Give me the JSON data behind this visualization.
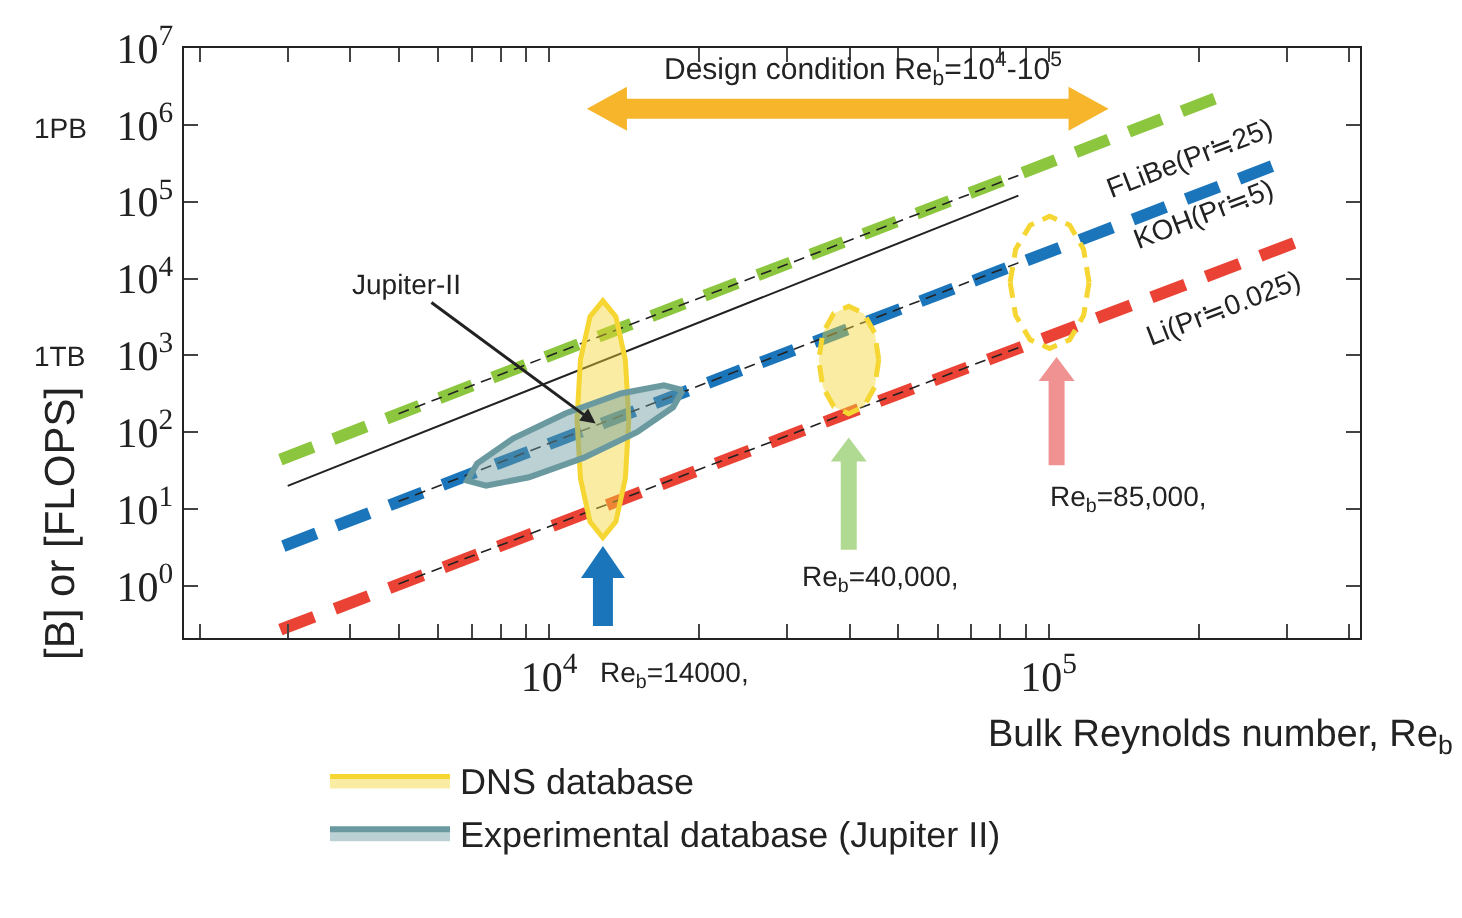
{
  "chart_data": {
    "type": "line",
    "xlabel": "Bulk Reynolds number, Re$_{b}$",
    "ylabel": "[B] or [FLOPS]",
    "log": "xy",
    "xlim": [
      1860,
      420000
    ],
    "ylim": [
      0.21,
      10000000
    ],
    "xticks": [
      {
        "value": 2000,
        "label": null
      },
      {
        "value": 3000,
        "label": null
      },
      {
        "value": 4000,
        "label": null
      },
      {
        "value": 5000,
        "label": null
      },
      {
        "value": 6000,
        "label": null
      },
      {
        "value": 7000,
        "label": null
      },
      {
        "value": 8000,
        "label": null
      },
      {
        "value": 9000,
        "label": null
      },
      {
        "value": 10000,
        "label": "10$^{4}$"
      },
      {
        "value": 20000,
        "label": null
      },
      {
        "value": 30000,
        "label": null
      },
      {
        "value": 40000,
        "label": null
      },
      {
        "value": 50000,
        "label": null
      },
      {
        "value": 60000,
        "label": null
      },
      {
        "value": 70000,
        "label": null
      },
      {
        "value": 80000,
        "label": null
      },
      {
        "value": 90000,
        "label": null
      },
      {
        "value": 100000,
        "label": "10$^{5}$"
      },
      {
        "value": 200000,
        "label": null
      },
      {
        "value": 300000,
        "label": null
      },
      {
        "value": 400000,
        "label": null
      }
    ],
    "yticks": [
      {
        "value": 1,
        "label": "10$^{0}$"
      },
      {
        "value": 10,
        "label": "10$^{1}$"
      },
      {
        "value": 100,
        "label": "10$^{2}$"
      },
      {
        "value": 1000,
        "label": "10$^{3}$"
      },
      {
        "value": 10000,
        "label": "10$^{4}$"
      },
      {
        "value": 100000,
        "label": "10$^{5}$"
      },
      {
        "value": 1000000,
        "label": "10$^{6}$"
      },
      {
        "value": 10000000,
        "label": "10$^{7}$"
      }
    ],
    "grid": false,
    "legend": "bottom",
    "marker": "none",
    "series": [
      {
        "color": "#8cc63e",
        "line_style": "dashed",
        "x": [
          2900,
          215000
        ],
        "values": [
          44,
          2200000
        ]
      },
      {
        "color": "#1b75bb",
        "line_style": "dashed",
        "x": [
          2940,
          280000
        ],
        "values": [
          3.3,
          290000
        ]
      },
      {
        "color": "#ea4335",
        "line_style": "dashed",
        "x": [
          2900,
          310000
        ],
        "values": [
          0.27,
          29000
        ]
      },
      {
        "color": "#222222",
        "line_style": "solid",
        "x": [
          3000,
          87000
        ],
        "values": [
          20,
          120000
        ]
      },
      {
        "color": "#222222",
        "line_style": "dashed",
        "x": [
          5000,
          87000
        ],
        "values": [
          174,
          220000
        ]
      },
      {
        "color": "#222222",
        "line_style": "dashed",
        "x": [
          5000,
          87000
        ],
        "values": [
          12.6,
          16000
        ]
      },
      {
        "color": "#222222",
        "line_style": "dashed",
        "x": [
          5000,
          87000
        ],
        "values": [
          1.06,
          1260
        ]
      },
      {
        "type": "area",
        "name": "DNS database",
        "color": "#f5d633",
        "line_style": "solid",
        "x": [
          14450,
          14220,
          13610,
          12820,
          12080,
          11560,
          11380,
          11560,
          12080,
          12820,
          13610,
          14220,
          14450
        ],
        "values": [
          148,
          871,
          3190,
          5130,
          3190,
          871,
          148,
          25.1,
          6.85,
          4.27,
          6.85,
          25.1,
          148
        ]
      },
      {
        "type": "area",
        "color": "#f5d633",
        "line_style": "dashed",
        "x": [
          45710,
          44870,
          42660,
          39810,
          37150,
          35320,
          34670,
          35320,
          37150,
          39810,
          42660,
          44870,
          45710
        ],
        "values": [
          871,
          1950,
          3520,
          4370,
          3520,
          1950,
          871,
          389,
          216,
          174,
          216,
          389,
          871
        ]
      },
      {
        "color": "#f5d633",
        "line_style": "dashed",
        "x": [
          83750,
          85900,
          91830,
          100500,
          110200,
          117500,
          120500,
          null,
          83750,
          85900,
          91830,
          100500,
          110200,
          117500,
          120500
        ],
        "values": [
          8910,
          23990,
          49550,
          64570,
          49550,
          23990,
          8910,
          null,
          8910,
          3310,
          1600,
          1230,
          1600,
          3310,
          8910
        ]
      },
      {
        "type": "area",
        "name": "Experimental database (Jupiter II)",
        "color": "#6a9aa0",
        "line_style": "solid",
        "x": [
          18530,
          17710,
          15000,
          11750,
          9120,
          7480,
          6860,
          7180,
          8470,
          10810,
          13930,
          16980,
          18530
        ],
        "values": [
          352,
          211,
          100,
          46.6,
          25.9,
          20.2,
          23.5,
          39.2,
          82.5,
          177,
          319,
          408,
          352
        ]
      }
    ],
    "annotations": [
      "Design condition Re$_{b}$=10$^{4}$-10$^{5}$",
      "FLiBe(Pr≒25)",
      "KOH(Pr≒5)",
      "Li(Pr≒0.025)",
      {
        "text": "Jupiter-II",
        "x": 12400,
        "y": 130
      },
      "Re$_{b}$=14000,",
      "Re$_{b}$=40,000,",
      "Re$_{b}$=85,000,",
      "1PB",
      "1TB"
    ]
  }
}
